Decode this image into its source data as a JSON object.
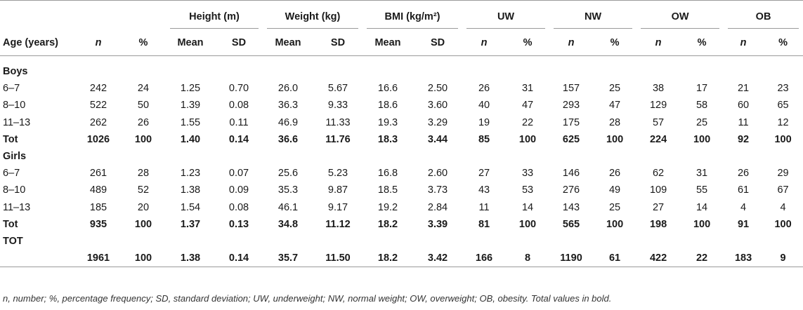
{
  "headers": {
    "age": "Age (years)",
    "n": "n",
    "pct": "%",
    "height": "Height (m)",
    "weight": "Weight (kg)",
    "bmi": "BMI (kg/m²)",
    "uw": "UW",
    "nw": "NW",
    "ow": "OW",
    "ob": "OB",
    "mean": "Mean",
    "sd": "SD"
  },
  "boys": {
    "label": "Boys",
    "rows": [
      [
        "6–7",
        "242",
        "24",
        "1.25",
        "0.70",
        "26.0",
        "5.67",
        "16.6",
        "2.50",
        "26",
        "31",
        "157",
        "25",
        "38",
        "17",
        "21",
        "23"
      ],
      [
        "8–10",
        "522",
        "50",
        "1.39",
        "0.08",
        "36.3",
        "9.33",
        "18.6",
        "3.60",
        "40",
        "47",
        "293",
        "47",
        "129",
        "58",
        "60",
        "65"
      ],
      [
        "11–13",
        "262",
        "26",
        "1.55",
        "0.11",
        "46.9",
        "11.33",
        "19.3",
        "3.29",
        "19",
        "22",
        "175",
        "28",
        "57",
        "25",
        "11",
        "12"
      ]
    ],
    "total": [
      "Tot",
      "1026",
      "100",
      "1.40",
      "0.14",
      "36.6",
      "11.76",
      "18.3",
      "3.44",
      "85",
      "100",
      "625",
      "100",
      "224",
      "100",
      "92",
      "100"
    ]
  },
  "girls": {
    "label": "Girls",
    "rows": [
      [
        "6–7",
        "261",
        "28",
        "1.23",
        "0.07",
        "25.6",
        "5.23",
        "16.8",
        "2.60",
        "27",
        "33",
        "146",
        "26",
        "62",
        "31",
        "26",
        "29"
      ],
      [
        "8–10",
        "489",
        "52",
        "1.38",
        "0.09",
        "35.3",
        "9.87",
        "18.5",
        "3.73",
        "43",
        "53",
        "276",
        "49",
        "109",
        "55",
        "61",
        "67"
      ],
      [
        "11–13",
        "185",
        "20",
        "1.54",
        "0.08",
        "46.1",
        "9.17",
        "19.2",
        "2.84",
        "11",
        "14",
        "143",
        "25",
        "27",
        "14",
        "4",
        "4"
      ]
    ],
    "total": [
      "Tot",
      "935",
      "100",
      "1.37",
      "0.13",
      "34.8",
      "11.12",
      "18.2",
      "3.39",
      "81",
      "100",
      "565",
      "100",
      "198",
      "100",
      "91",
      "100"
    ]
  },
  "tot": {
    "label": "TOT",
    "values": [
      "",
      "1961",
      "100",
      "1.38",
      "0.14",
      "35.7",
      "11.50",
      "18.2",
      "3.42",
      "166",
      "8",
      "1190",
      "61",
      "422",
      "22",
      "183",
      "9"
    ]
  },
  "footnote": "n, number; %, percentage frequency; SD, standard deviation; UW, underweight; NW, normal weight; OW, overweight; OB, obesity. Total values in bold."
}
